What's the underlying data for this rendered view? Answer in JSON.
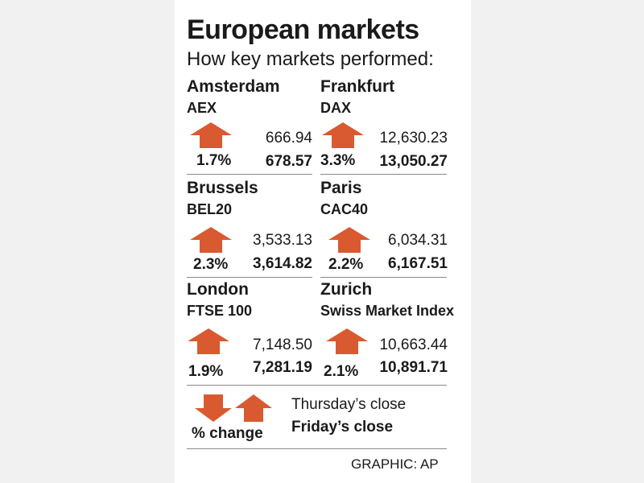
{
  "title": "European markets",
  "subtitle": "How key markets performed:",
  "accent_color": "#d95a30",
  "markets": [
    {
      "city": "Amsterdam",
      "index": "AEX",
      "direction": "up",
      "change": "1.7%",
      "thursday_close": "666.94",
      "friday_close": "678.57"
    },
    {
      "city": "Frankfurt",
      "index": "DAX",
      "direction": "up",
      "change": "3.3%",
      "thursday_close": "12,630.23",
      "friday_close": "13,050.27"
    },
    {
      "city": "Brussels",
      "index": "BEL20",
      "direction": "up",
      "change": "2.3%",
      "thursday_close": "3,533.13",
      "friday_close": "3,614.82"
    },
    {
      "city": "Paris",
      "index": "CAC40",
      "direction": "up",
      "change": "2.2%",
      "thursday_close": "6,034.31",
      "friday_close": "6,167.51"
    },
    {
      "city": "London",
      "index": "FTSE 100",
      "direction": "up",
      "change": "1.9%",
      "thursday_close": "7,148.50",
      "friday_close": "7,281.19"
    },
    {
      "city": "Zurich",
      "index": "Swiss Market Index",
      "direction": "up",
      "change": "2.1%",
      "thursday_close": "10,663.44",
      "friday_close": "10,891.71"
    }
  ],
  "legend": {
    "change_label": "% change",
    "thursday_label": "Thursday’s close",
    "friday_label": "Friday’s close"
  },
  "credit": "GRAPHIC: AP"
}
